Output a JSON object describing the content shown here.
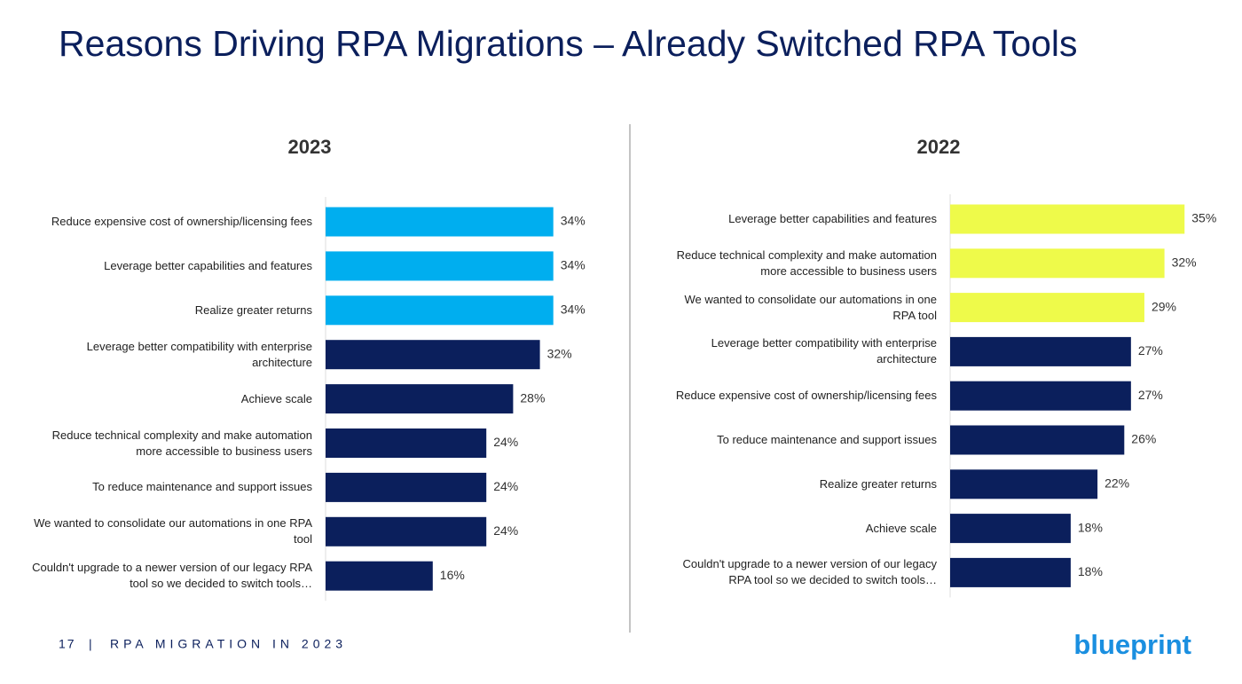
{
  "title": "Reasons Driving RPA Migrations – Already Switched RPA Tools",
  "footer": {
    "page": "17",
    "text": "RPA MIGRATION IN 2023"
  },
  "logo": "blueprint",
  "chart_data": [
    {
      "type": "bar",
      "orientation": "horizontal",
      "title": "2023",
      "categories": [
        "Reduce expensive cost of ownership/licensing fees",
        "Leverage better capabilities and features",
        "Realize greater returns",
        "Leverage better compatibility with enterprise architecture",
        "Achieve scale",
        "Reduce technical complexity and make automation more accessible to business users",
        "To reduce maintenance and support issues",
        "We wanted to consolidate our automations in one RPA tool",
        "Couldn't upgrade to a newer version of our legacy RPA tool so we decided to switch tools…"
      ],
      "values": [
        34,
        34,
        34,
        32,
        28,
        24,
        24,
        24,
        16
      ],
      "value_labels": [
        "34%",
        "34%",
        "34%",
        "32%",
        "28%",
        "24%",
        "24%",
        "24%",
        "16%"
      ],
      "colors": [
        "#00aeef",
        "#00aeef",
        "#00aeef",
        "#0b1f5c",
        "#0b1f5c",
        "#0b1f5c",
        "#0b1f5c",
        "#0b1f5c",
        "#0b1f5c"
      ]
    },
    {
      "type": "bar",
      "orientation": "horizontal",
      "title": "2022",
      "categories": [
        "Leverage better capabilities and features",
        "Reduce technical complexity and make automation more accessible to business users",
        "We wanted to consolidate our automations in one RPA tool",
        "Leverage better compatibility with enterprise architecture",
        "Reduce expensive cost of ownership/licensing fees",
        "To reduce maintenance and support issues",
        "Realize greater returns",
        "Achieve scale",
        "Couldn't upgrade to a newer version of our legacy RPA tool so we decided to switch tools…"
      ],
      "values": [
        35,
        32,
        29,
        27,
        27,
        26,
        22,
        18,
        18
      ],
      "value_labels": [
        "35%",
        "32%",
        "29%",
        "27%",
        "27%",
        "26%",
        "22%",
        "18%",
        "18%"
      ],
      "colors": [
        "#eefa4a",
        "#eefa4a",
        "#eefa4a",
        "#0b1f5c",
        "#0b1f5c",
        "#0b1f5c",
        "#0b1f5c",
        "#0b1f5c",
        "#0b1f5c"
      ]
    }
  ]
}
